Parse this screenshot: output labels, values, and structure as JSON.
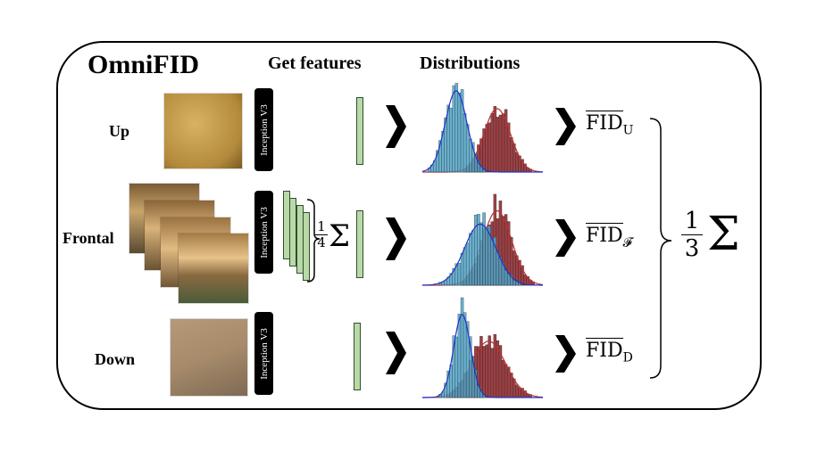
{
  "title": "OmniFID",
  "headers": {
    "features": "Get features",
    "distributions": "Distributions"
  },
  "rows": [
    {
      "label": "Up",
      "fid_sub": "U"
    },
    {
      "label": "Frontal",
      "fid_sub": "𝓕"
    },
    {
      "label": "Down",
      "fid_sub": "D"
    }
  ],
  "model_label": "Inception V3",
  "fid_symbol": "FID",
  "avg_fraction": {
    "num": "1",
    "den": "4"
  },
  "final_fraction": {
    "num": "1",
    "den": "3"
  },
  "sum_symbol": "Σ",
  "colors": {
    "feature": "#b9d9a8",
    "real": "#4fa3c7",
    "fake": "#8b1f23",
    "fit_real": "#2233cc",
    "fit_fake": "#b33"
  }
}
